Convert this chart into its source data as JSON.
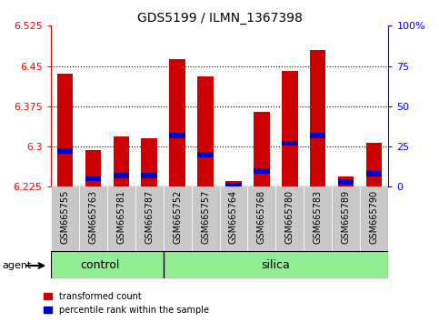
{
  "title": "GDS5199 / ILMN_1367398",
  "samples": [
    "GSM665755",
    "GSM665763",
    "GSM665781",
    "GSM665787",
    "GSM665752",
    "GSM665757",
    "GSM665764",
    "GSM665768",
    "GSM665780",
    "GSM665783",
    "GSM665789",
    "GSM665790"
  ],
  "n_control": 4,
  "n_silica": 8,
  "transformed_count": [
    6.435,
    6.293,
    6.318,
    6.315,
    6.463,
    6.43,
    6.235,
    6.365,
    6.44,
    6.48,
    6.245,
    6.307
  ],
  "percentile_rank": [
    22,
    5,
    7,
    7,
    32,
    20,
    1,
    10,
    27,
    32,
    3,
    8
  ],
  "ymin": 6.225,
  "ymax": 6.525,
  "yticks": [
    6.225,
    6.3,
    6.375,
    6.45,
    6.525
  ],
  "right_yticks": [
    0,
    25,
    50,
    75,
    100
  ],
  "bar_color": "#cc0000",
  "blue_color": "#0000cc",
  "green_color": "#90EE90",
  "gray_color": "#c8c8c8",
  "legend_labels": [
    "transformed count",
    "percentile rank within the sample"
  ],
  "bar_width": 0.55,
  "base": 6.225,
  "grid_lines": [
    6.3,
    6.375,
    6.45
  ],
  "blue_bar_height": 0.01
}
